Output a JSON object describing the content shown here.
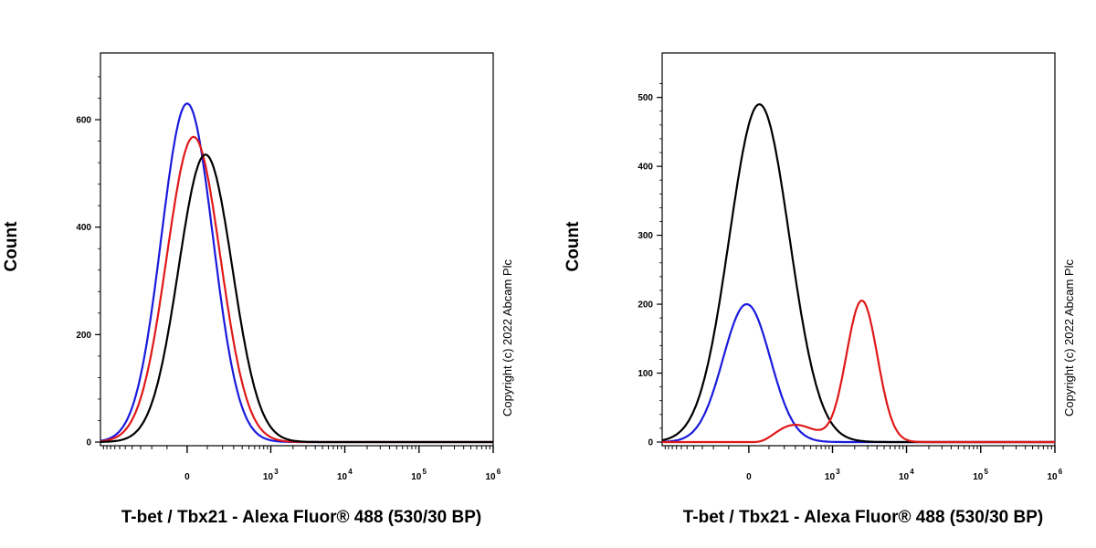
{
  "colors": {
    "blue": "#1a1adc",
    "red": "#e01818",
    "black": "#000000",
    "axis": "#000000"
  },
  "chart_data": [
    {
      "type": "line",
      "subtype": "flow-cytometry-histogram",
      "xlabel": "T-bet / Tbx21 - Alexa Fluor® 488 (530/30 BP)",
      "ylabel": "Count",
      "x_scale": "biexponential",
      "x_ticks": [
        {
          "value": 0,
          "label": "0"
        },
        {
          "value": 1000,
          "base": "10",
          "exp": "3"
        },
        {
          "value": 10000,
          "base": "10",
          "exp": "4"
        },
        {
          "value": 100000,
          "base": "10",
          "exp": "5"
        },
        {
          "value": 1000000,
          "base": "10",
          "exp": "6"
        }
      ],
      "ylim": [
        0,
        680
      ],
      "y_ticks": [
        0,
        200,
        400,
        600
      ],
      "copyright": "Copyright (c) 2022 Abcam Plc",
      "series": [
        {
          "color": "blue",
          "peaks": [
            {
              "center": 0,
              "height": 630,
              "sigma": 120
            }
          ]
        },
        {
          "color": "red",
          "peaks": [
            {
              "center": 30,
              "height": 568,
              "sigma": 125
            }
          ]
        },
        {
          "color": "black",
          "peaks": [
            {
              "center": 90,
              "height": 535,
              "sigma": 125
            }
          ]
        }
      ]
    },
    {
      "type": "line",
      "subtype": "flow-cytometry-histogram",
      "xlabel": "T-bet / Tbx21 - Alexa Fluor® 488 (530/30 BP)",
      "ylabel": "Count",
      "x_scale": "biexponential",
      "x_ticks": [
        {
          "value": 0,
          "label": "0"
        },
        {
          "value": 1000,
          "base": "10",
          "exp": "3"
        },
        {
          "value": 10000,
          "base": "10",
          "exp": "4"
        },
        {
          "value": 100000,
          "base": "10",
          "exp": "5"
        },
        {
          "value": 1000000,
          "base": "10",
          "exp": "6"
        }
      ],
      "ylim": [
        0,
        530
      ],
      "y_ticks": [
        0,
        100,
        200,
        300,
        400,
        500
      ],
      "copyright": "Copyright (c) 2022 Abcam Plc",
      "series": [
        {
          "color": "blue",
          "peaks": [
            {
              "center": -10,
              "height": 200,
              "sigma": 110
            }
          ]
        },
        {
          "color": "black",
          "peaks": [
            {
              "center": 50,
              "height": 490,
              "sigma": 140
            }
          ]
        },
        {
          "color": "red",
          "peaks": [
            {
              "center": 2500,
              "height": 205,
              "sigma": 0.21,
              "log": true
            },
            {
              "center": 300,
              "height": 25,
              "sigma": 0.3,
              "log": true
            }
          ]
        }
      ]
    }
  ]
}
